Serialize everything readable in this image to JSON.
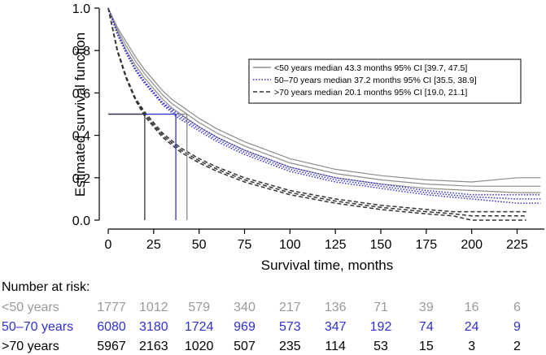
{
  "chart_data": {
    "type": "line",
    "title": "",
    "xlabel": "Survival time, months",
    "ylabel": "Estimated survival function",
    "xlim": [
      0,
      240
    ],
    "ylim": [
      0,
      1.0
    ],
    "xticks": [
      0,
      25,
      50,
      75,
      100,
      125,
      150,
      175,
      200,
      225
    ],
    "yticks": [
      "0.0",
      "0.2",
      "0.4",
      "0.6",
      "0.8",
      "1.0"
    ],
    "median_reference_y": 0.5,
    "series": [
      {
        "name": "<50 years median 43.3 months 95% CI [39.7, 47.5]",
        "color": "#8c8c8c",
        "style": "solid",
        "median": 43.3,
        "x": [
          0,
          5,
          10,
          15,
          20,
          25,
          30,
          35,
          40,
          43.3,
          50,
          60,
          75,
          100,
          125,
          150,
          175,
          200,
          225,
          238
        ],
        "y": [
          1.0,
          0.9,
          0.82,
          0.75,
          0.69,
          0.64,
          0.59,
          0.55,
          0.52,
          0.5,
          0.46,
          0.41,
          0.35,
          0.27,
          0.22,
          0.19,
          0.17,
          0.16,
          0.16,
          0.16
        ],
        "ci_lower": [
          1.0,
          0.89,
          0.8,
          0.73,
          0.67,
          0.62,
          0.57,
          0.53,
          0.5,
          0.48,
          0.44,
          0.39,
          0.33,
          0.25,
          0.2,
          0.17,
          0.15,
          0.14,
          0.13,
          0.13
        ],
        "ci_upper": [
          1.0,
          0.91,
          0.84,
          0.77,
          0.71,
          0.66,
          0.61,
          0.57,
          0.54,
          0.52,
          0.48,
          0.43,
          0.37,
          0.29,
          0.24,
          0.21,
          0.19,
          0.18,
          0.2,
          0.2
        ]
      },
      {
        "name": "50–70 years median 37.2 months 95% CI [35.5, 38.9]",
        "color": "#2f2fd6",
        "style": "dotted",
        "median": 37.2,
        "x": [
          0,
          5,
          10,
          15,
          20,
          25,
          30,
          37.2,
          50,
          60,
          75,
          100,
          125,
          150,
          175,
          200,
          225,
          238
        ],
        "y": [
          1.0,
          0.88,
          0.79,
          0.71,
          0.65,
          0.6,
          0.55,
          0.5,
          0.43,
          0.38,
          0.32,
          0.24,
          0.19,
          0.16,
          0.13,
          0.11,
          0.1,
          0.1
        ],
        "ci_lower": [
          1.0,
          0.875,
          0.785,
          0.705,
          0.645,
          0.595,
          0.545,
          0.49,
          0.42,
          0.37,
          0.31,
          0.23,
          0.18,
          0.15,
          0.12,
          0.1,
          0.08,
          0.08
        ],
        "ci_upper": [
          1.0,
          0.885,
          0.795,
          0.715,
          0.655,
          0.605,
          0.555,
          0.51,
          0.44,
          0.39,
          0.33,
          0.25,
          0.2,
          0.17,
          0.14,
          0.12,
          0.12,
          0.12
        ]
      },
      {
        "name": ">70 years median 20.1 months 95% CI [19.0, 21.1]",
        "color": "#333333",
        "style": "dashed",
        "median": 20.1,
        "x": [
          0,
          5,
          10,
          15,
          20.1,
          25,
          30,
          40,
          50,
          60,
          75,
          100,
          125,
          150,
          175,
          190,
          200,
          225,
          230
        ],
        "y": [
          1.0,
          0.8,
          0.67,
          0.57,
          0.5,
          0.45,
          0.4,
          0.33,
          0.28,
          0.24,
          0.19,
          0.13,
          0.09,
          0.06,
          0.04,
          0.03,
          0.02,
          0.02,
          0.02
        ],
        "ci_lower": [
          1.0,
          0.795,
          0.665,
          0.565,
          0.49,
          0.44,
          0.39,
          0.32,
          0.27,
          0.23,
          0.18,
          0.12,
          0.08,
          0.05,
          0.03,
          0.02,
          0.0,
          0.0,
          0.0
        ],
        "ci_upper": [
          1.0,
          0.805,
          0.675,
          0.575,
          0.51,
          0.46,
          0.41,
          0.34,
          0.29,
          0.25,
          0.2,
          0.14,
          0.1,
          0.07,
          0.05,
          0.04,
          0.04,
          0.04,
          0.04
        ]
      }
    ]
  },
  "risk_table": {
    "title": "Number at risk:",
    "rows": [
      {
        "label": "<50 years",
        "color": "#9a9a9a",
        "values": [
          "1777",
          "1012",
          "579",
          "340",
          "217",
          "136",
          "71",
          "39",
          "16",
          "6"
        ]
      },
      {
        "label": "50–70 years",
        "color": "#2f2fd6",
        "values": [
          "6080",
          "3180",
          "1724",
          "969",
          "573",
          "347",
          "192",
          "74",
          "24",
          "9"
        ]
      },
      {
        "label": ">70 years",
        "color": "#000000",
        "values": [
          "5967",
          "2163",
          "1020",
          "507",
          "235",
          "114",
          "53",
          "15",
          "3",
          "2"
        ]
      }
    ]
  }
}
